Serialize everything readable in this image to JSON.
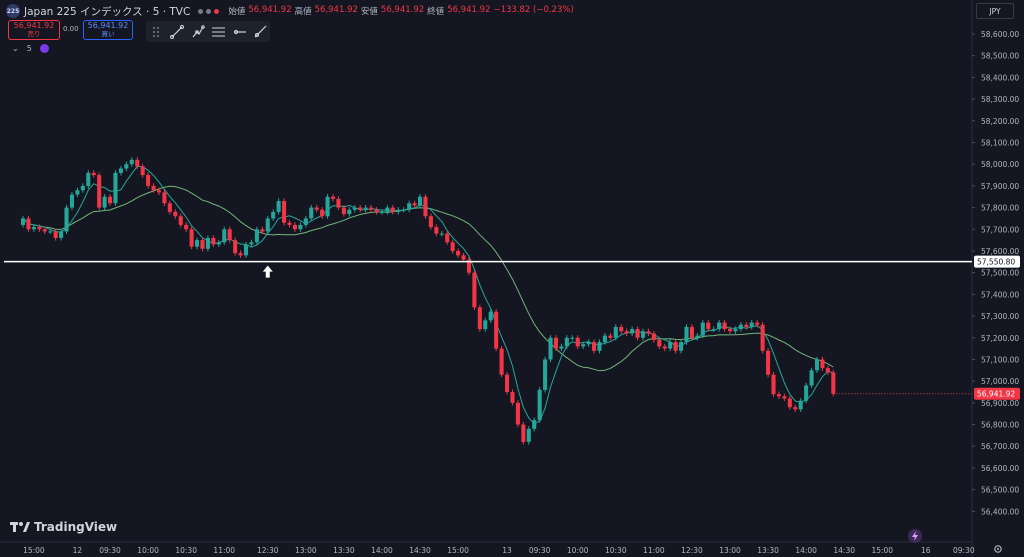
{
  "header": {
    "logo_text": "225",
    "title": "Japan 225 インデックス · 5 · TVC",
    "ohlc": [
      {
        "label": "始値",
        "value": "56,941.92"
      },
      {
        "label": "高値",
        "value": "56,941.92"
      },
      {
        "label": "安値",
        "value": "56,941.92"
      },
      {
        "label": "終値",
        "value": "56,941.92"
      },
      {
        "label": "",
        "value": "−133.82 (−0.23%)"
      }
    ]
  },
  "trade": {
    "sell_price": "56,941.92",
    "sell_label": "売り",
    "spread": "0.00",
    "buy_price": "56,941.92",
    "buy_label": "買い"
  },
  "toolbar": {
    "tools": [
      "drag-handle-icon",
      "trend-line-icon",
      "path-icon",
      "parallel-lines-icon",
      "horizontal-ray-icon",
      "ray-line-icon"
    ]
  },
  "indicator": {
    "label": "5"
  },
  "currency": "JPY",
  "branding": {
    "name": "TradingView"
  },
  "colors": {
    "background": "#141722",
    "up": "#26a69a",
    "down": "#f23645",
    "ma_fast": "#26a69a",
    "ma_slow": "#74b57a",
    "hline": "#ffffff",
    "price_label_bg": "#f23645"
  },
  "chart_data": {
    "type": "candlestick",
    "ylim": [
      56360,
      58660
    ],
    "y_ticks": [
      "58,600.00",
      "58,500.00",
      "58,400.00",
      "58,300.00",
      "58,200.00",
      "58,100.00",
      "58,000.00",
      "57,900.00",
      "57,800.00",
      "57,700.00",
      "57,600.00",
      "57,500.00",
      "57,400.00",
      "57,300.00",
      "57,200.00",
      "57,100.00",
      "57,000.00",
      "56,900.00",
      "56,800.00",
      "56,700.00",
      "56,600.00",
      "56,500.00",
      "56,400.00"
    ],
    "y_tick_values": [
      58600,
      58500,
      58400,
      58300,
      58200,
      58100,
      58000,
      57900,
      57800,
      57700,
      57600,
      57500,
      57400,
      57300,
      57200,
      57100,
      57000,
      56900,
      56800,
      56700,
      56600,
      56500,
      56400
    ],
    "x_ticks": [
      "15:00",
      "12",
      "09:30",
      "10:00",
      "10:30",
      "11:00",
      "12:30",
      "13:00",
      "13:30",
      "14:00",
      "14:30",
      "15:00",
      "13",
      "09:30",
      "10:00",
      "10:30",
      "11:00",
      "12:30",
      "13:00",
      "13:30",
      "14:00",
      "14:30",
      "15:00",
      "16",
      "09:30"
    ],
    "x_tick_index": [
      5,
      13,
      19,
      26,
      33,
      40,
      48,
      55,
      62,
      69,
      76,
      83,
      92,
      98,
      105,
      112,
      119,
      126,
      133,
      140,
      147,
      154,
      161,
      169,
      176
    ],
    "n_slots": 178,
    "closes": [
      57750,
      57700,
      57710,
      57700,
      57690,
      57690,
      57660,
      57690,
      57800,
      57860,
      57880,
      57900,
      57960,
      57950,
      57800,
      57850,
      57820,
      57960,
      57980,
      58000,
      58020,
      57990,
      57950,
      57900,
      57880,
      57870,
      57820,
      57780,
      57760,
      57720,
      57700,
      57620,
      57650,
      57610,
      57660,
      57630,
      57640,
      57700,
      57650,
      57590,
      57580,
      57630,
      57640,
      57700,
      57690,
      57750,
      57780,
      57830,
      57730,
      57720,
      57700,
      57720,
      57750,
      57800,
      57790,
      57760,
      57850,
      57840,
      57800,
      57770,
      57790,
      57800,
      57790,
      57800,
      57790,
      57780,
      57780,
      57800,
      57780,
      57790,
      57790,
      57820,
      57810,
      57850,
      57760,
      57710,
      57680,
      57680,
      57640,
      57600,
      57580,
      57560,
      57500,
      57340,
      57240,
      57280,
      57320,
      57150,
      57030,
      56950,
      56900,
      56800,
      56720,
      56780,
      56820,
      56960,
      57100,
      57200,
      57150,
      57160,
      57200,
      57200,
      57160,
      57170,
      57180,
      57140,
      57180,
      57210,
      57200,
      57250,
      57230,
      57220,
      57240,
      57200,
      57230,
      57220,
      57190,
      57160,
      57150,
      57180,
      57140,
      57180,
      57250,
      57200,
      57210,
      57270,
      57240,
      57240,
      57270,
      57240,
      57230,
      57240,
      57260,
      57250,
      57270,
      57260,
      57140,
      57030,
      56940,
      56930,
      56920,
      56880,
      56870,
      56910,
      56980,
      57050,
      57100,
      57060,
      57040,
      56941.92
    ],
    "opens": [
      57720,
      57750,
      57700,
      57710,
      57700,
      57690,
      57690,
      57660,
      57690,
      57800,
      57860,
      57880,
      57900,
      57960,
      57950,
      57800,
      57850,
      57820,
      57960,
      57980,
      58000,
      58020,
      57990,
      57950,
      57900,
      57880,
      57870,
      57820,
      57780,
      57760,
      57720,
      57700,
      57620,
      57650,
      57610,
      57660,
      57630,
      57640,
      57700,
      57650,
      57590,
      57580,
      57630,
      57640,
      57700,
      57690,
      57750,
      57780,
      57830,
      57730,
      57720,
      57700,
      57720,
      57750,
      57800,
      57790,
      57760,
      57850,
      57840,
      57800,
      57770,
      57790,
      57800,
      57790,
      57800,
      57790,
      57780,
      57780,
      57800,
      57780,
      57790,
      57790,
      57820,
      57810,
      57850,
      57760,
      57710,
      57680,
      57680,
      57640,
      57600,
      57580,
      57560,
      57500,
      57340,
      57240,
      57280,
      57320,
      57150,
      57030,
      56950,
      56900,
      56800,
      56720,
      56780,
      56820,
      56960,
      57100,
      57200,
      57150,
      57160,
      57200,
      57200,
      57160,
      57170,
      57180,
      57140,
      57180,
      57210,
      57200,
      57250,
      57230,
      57220,
      57240,
      57200,
      57230,
      57220,
      57190,
      57160,
      57150,
      57180,
      57140,
      57180,
      57250,
      57200,
      57210,
      57270,
      57240,
      57240,
      57270,
      57240,
      57230,
      57240,
      57260,
      57250,
      57270,
      57260,
      57140,
      57030,
      56940,
      56930,
      56920,
      56880,
      56870,
      56910,
      56980,
      57050,
      57100,
      57060,
      57040
    ],
    "horizontal_line": {
      "value": 57550.8,
      "label": "57,550.80"
    },
    "last_price": {
      "value": 56941.92,
      "label": "56,941.92"
    },
    "arrow_at_index": 45
  }
}
